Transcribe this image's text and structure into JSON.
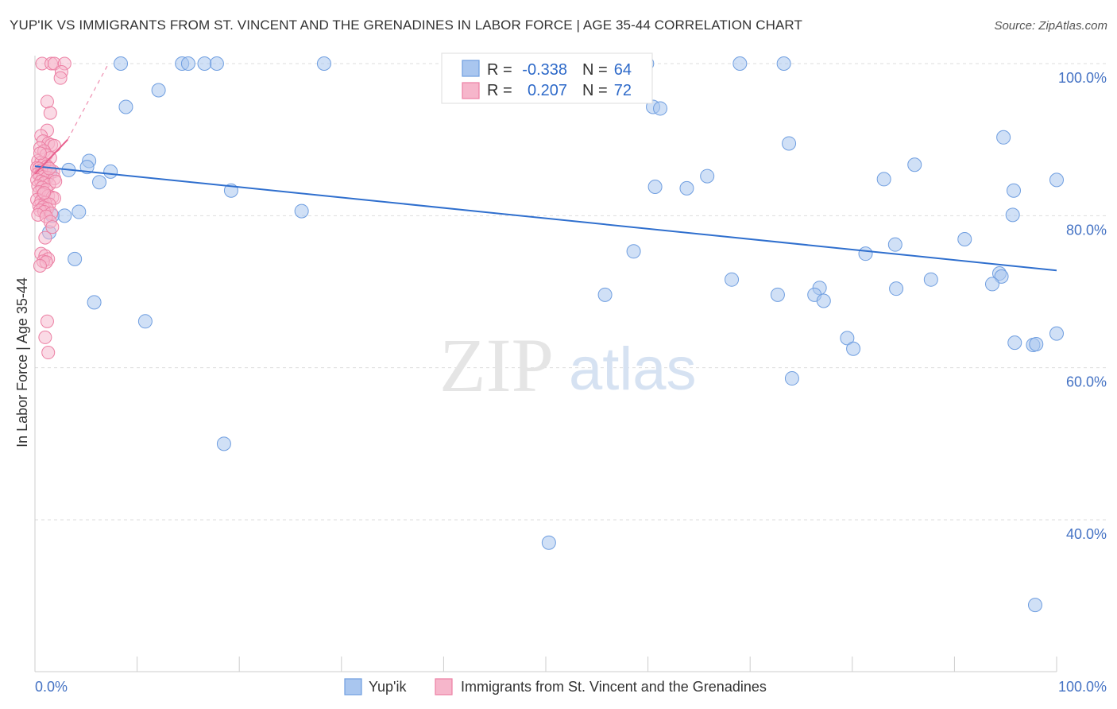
{
  "title": "YUP'IK VS IMMIGRANTS FROM ST. VINCENT AND THE GRENADINES IN LABOR FORCE | AGE 35-44 CORRELATION CHART",
  "source": "Source: ZipAtlas.com",
  "watermark": {
    "zip": "ZIP",
    "atlas": "atlas"
  },
  "colors": {
    "blue_fill": "#a9c6ef",
    "blue_stroke": "#6f9ee0",
    "blue_line": "#2f6fce",
    "pink_fill": "#f6b6cb",
    "pink_stroke": "#ec7fa3",
    "pink_line": "#e8608e",
    "grid": "#dddddd",
    "tick_text": "#4472c4"
  },
  "stats": [
    {
      "r_label": "R =",
      "r_value": "-0.338",
      "n_label": "N =",
      "n_value": "64"
    },
    {
      "r_label": "R =",
      "r_value": "0.207",
      "n_label": "N =",
      "n_value": "72"
    }
  ],
  "chart_data": {
    "type": "scatter",
    "title": "YUP'IK VS IMMIGRANTS FROM ST. VINCENT AND THE GRENADINES IN LABOR FORCE | AGE 35-44 CORRELATION CHART",
    "xlabel": "",
    "ylabel": "In Labor Force | Age 35-44",
    "xlim": [
      0,
      100
    ],
    "ylim": [
      20,
      104
    ],
    "x_tick_labels": [
      "0.0%",
      "100.0%"
    ],
    "y_tick_labels": [
      "100.0%",
      "80.0%",
      "60.0%",
      "40.0%"
    ],
    "y_ticks": [
      100,
      80,
      60,
      40
    ],
    "grid": true,
    "legend_position": "bottom-center",
    "series": [
      {
        "name": "Yup'ik",
        "color": "blue",
        "trend": {
          "x0": 0,
          "y0": 86.5,
          "x1": 100,
          "y1": 72.8
        },
        "points": [
          [
            8.4,
            100
          ],
          [
            14.4,
            100
          ],
          [
            15.0,
            100
          ],
          [
            16.6,
            100
          ],
          [
            17.8,
            100
          ],
          [
            28.3,
            100
          ],
          [
            41.2,
            100
          ],
          [
            59.9,
            100
          ],
          [
            69.0,
            100
          ],
          [
            73.3,
            100
          ],
          [
            12.1,
            96.5
          ],
          [
            8.9,
            94.3
          ],
          [
            60.5,
            94.3
          ],
          [
            61.2,
            94.1
          ],
          [
            94.8,
            90.3
          ],
          [
            73.8,
            89.5
          ],
          [
            86.1,
            86.7
          ],
          [
            5.3,
            87.2
          ],
          [
            5.1,
            86.4
          ],
          [
            3.3,
            86.0
          ],
          [
            7.4,
            85.8
          ],
          [
            1.5,
            85.7
          ],
          [
            65.8,
            85.2
          ],
          [
            83.1,
            84.8
          ],
          [
            100.0,
            84.7
          ],
          [
            6.3,
            84.4
          ],
          [
            60.7,
            83.8
          ],
          [
            63.8,
            83.6
          ],
          [
            19.2,
            83.3
          ],
          [
            95.8,
            83.3
          ],
          [
            95.7,
            80.1
          ],
          [
            26.1,
            80.6
          ],
          [
            4.3,
            80.5
          ],
          [
            2.9,
            80.0
          ],
          [
            1.7,
            80.0
          ],
          [
            1.4,
            77.8
          ],
          [
            91.0,
            76.9
          ],
          [
            84.2,
            76.2
          ],
          [
            81.3,
            75.0
          ],
          [
            58.6,
            75.3
          ],
          [
            3.9,
            74.3
          ],
          [
            94.4,
            72.4
          ],
          [
            94.6,
            72.0
          ],
          [
            68.2,
            71.6
          ],
          [
            87.7,
            71.6
          ],
          [
            93.7,
            71.0
          ],
          [
            76.8,
            70.5
          ],
          [
            84.3,
            70.4
          ],
          [
            76.3,
            69.6
          ],
          [
            72.7,
            69.6
          ],
          [
            55.8,
            69.6
          ],
          [
            5.8,
            68.6
          ],
          [
            77.2,
            68.8
          ],
          [
            10.8,
            66.1
          ],
          [
            100.0,
            64.5
          ],
          [
            79.5,
            63.9
          ],
          [
            80.1,
            62.5
          ],
          [
            95.9,
            63.3
          ],
          [
            97.7,
            63.0
          ],
          [
            98.0,
            63.1
          ],
          [
            74.1,
            58.6
          ],
          [
            18.5,
            50.0
          ],
          [
            50.3,
            37.0
          ],
          [
            97.9,
            28.8
          ]
        ]
      },
      {
        "name": "Immigrants from St. Vincent and the Grenadines",
        "color": "pink",
        "trend": {
          "x0": 0,
          "y0": 85.5,
          "x1": 3.2,
          "y1": 90.0
        },
        "trend_ext": {
          "x0": 3.2,
          "y0": 90.0,
          "x1": 7.2,
          "y1": 100.0
        },
        "points": [
          [
            0.7,
            100
          ],
          [
            1.6,
            100
          ],
          [
            1.9,
            100
          ],
          [
            2.9,
            100
          ],
          [
            2.6,
            98.9
          ],
          [
            2.5,
            98.1
          ],
          [
            1.2,
            95.0
          ],
          [
            1.5,
            93.5
          ],
          [
            1.2,
            91.2
          ],
          [
            0.6,
            90.5
          ],
          [
            0.8,
            89.8
          ],
          [
            1.3,
            89.5
          ],
          [
            1.6,
            89.3
          ],
          [
            1.9,
            89.2
          ],
          [
            0.5,
            88.9
          ],
          [
            0.9,
            88.5
          ],
          [
            1.1,
            88.0
          ],
          [
            1.5,
            87.6
          ],
          [
            0.3,
            87.2
          ],
          [
            0.6,
            87.0
          ],
          [
            0.9,
            86.8
          ],
          [
            1.2,
            86.5
          ],
          [
            0.2,
            86.3
          ],
          [
            0.4,
            86.2
          ],
          [
            0.7,
            86.0
          ],
          [
            1.0,
            85.9
          ],
          [
            1.8,
            85.8
          ],
          [
            0.3,
            85.5
          ],
          [
            0.5,
            85.3
          ],
          [
            0.8,
            85.1
          ],
          [
            1.2,
            85.0
          ],
          [
            1.9,
            84.9
          ],
          [
            0.2,
            84.7
          ],
          [
            0.6,
            84.5
          ],
          [
            0.9,
            84.3
          ],
          [
            1.4,
            84.1
          ],
          [
            0.3,
            83.9
          ],
          [
            0.7,
            83.7
          ],
          [
            1.1,
            83.4
          ],
          [
            0.4,
            83.1
          ],
          [
            0.8,
            82.8
          ],
          [
            1.3,
            82.6
          ],
          [
            1.7,
            82.4
          ],
          [
            1.9,
            82.3
          ],
          [
            0.2,
            82.1
          ],
          [
            0.6,
            81.9
          ],
          [
            1.0,
            81.7
          ],
          [
            1.4,
            81.5
          ],
          [
            0.4,
            81.3
          ],
          [
            0.8,
            81.1
          ],
          [
            1.2,
            80.9
          ],
          [
            0.5,
            80.7
          ],
          [
            0.9,
            80.5
          ],
          [
            1.6,
            80.3
          ],
          [
            0.3,
            80.1
          ],
          [
            1.1,
            79.9
          ],
          [
            1.5,
            79.2
          ],
          [
            1.7,
            78.5
          ],
          [
            1.0,
            77.1
          ],
          [
            0.6,
            75.0
          ],
          [
            1.0,
            74.7
          ],
          [
            1.3,
            74.3
          ],
          [
            0.8,
            74.0
          ],
          [
            1.1,
            73.9
          ],
          [
            0.5,
            73.4
          ],
          [
            1.2,
            66.1
          ],
          [
            1.0,
            64.0
          ],
          [
            1.3,
            62.0
          ],
          [
            0.9,
            83.0
          ],
          [
            1.4,
            86.2
          ],
          [
            0.5,
            88.2
          ],
          [
            2.0,
            84.5
          ]
        ]
      }
    ]
  },
  "legend": [
    {
      "label": "Yup'ik",
      "color": "blue"
    },
    {
      "label": "Immigrants from St. Vincent and the Grenadines",
      "color": "pink"
    }
  ]
}
